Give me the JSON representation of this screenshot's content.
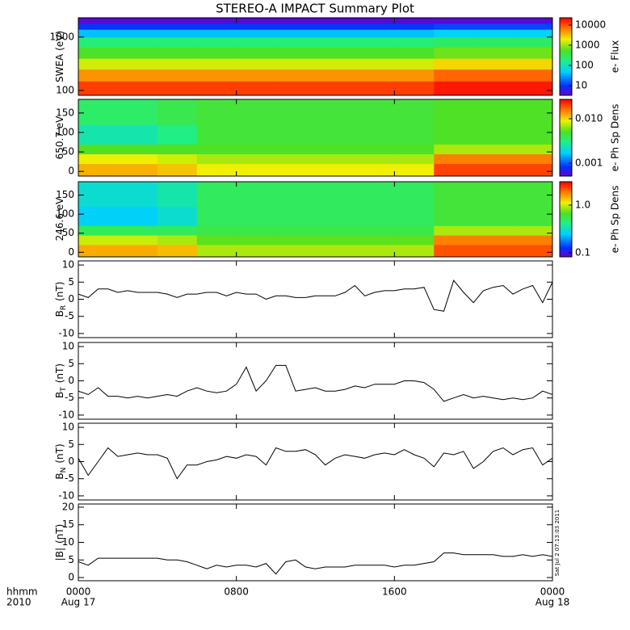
{
  "title": "STEREO-A IMPACT Summary Plot",
  "timestamp": "Sat Jul  2 07:13:03 2011",
  "chart_data": [
    {
      "type": "heatmap",
      "ylabel": "SWEA (eV)",
      "ylog": true,
      "xlim": [
        0,
        24
      ],
      "ylim": [
        81,
        2300
      ],
      "yticks": [
        100,
        1000
      ],
      "x_bins": [
        0,
        2,
        4,
        6,
        8,
        10,
        12,
        14,
        16,
        18,
        20,
        22,
        24
      ],
      "y_bins": [
        81,
        150,
        250,
        400,
        650,
        1000,
        1400,
        1800,
        2300
      ],
      "z": [
        [
          12000,
          5000,
          1500,
          500,
          200,
          40,
          10,
          4
        ],
        [
          12000,
          5000,
          1500,
          500,
          200,
          40,
          10,
          4
        ],
        [
          12000,
          5000,
          1500,
          500,
          200,
          40,
          10,
          4
        ],
        [
          12000,
          5000,
          1500,
          500,
          200,
          40,
          10,
          4
        ],
        [
          12000,
          5000,
          1500,
          500,
          200,
          40,
          10,
          4
        ],
        [
          12000,
          5000,
          1500,
          500,
          200,
          40,
          10,
          4
        ],
        [
          12000,
          5000,
          1500,
          500,
          200,
          40,
          10,
          4
        ],
        [
          12000,
          5000,
          1500,
          500,
          200,
          40,
          10,
          4
        ],
        [
          12000,
          5000,
          1500,
          500,
          200,
          40,
          10,
          4
        ],
        [
          18000,
          8000,
          2500,
          700,
          250,
          50,
          12,
          4
        ],
        [
          18000,
          8000,
          2500,
          700,
          250,
          50,
          12,
          4
        ],
        [
          18000,
          8000,
          2500,
          700,
          250,
          50,
          12,
          4
        ]
      ],
      "colorbar": {
        "label": "e- Flux",
        "log": true,
        "lim": [
          3.3,
          23000
        ],
        "ticks": [
          10,
          100,
          1000,
          10000
        ]
      }
    },
    {
      "type": "heatmap",
      "ylabel": "650.7 eV",
      "ylog": false,
      "xlim": [
        0,
        24
      ],
      "ylim": [
        -12,
        185
      ],
      "yticks": [
        0,
        50,
        100,
        150
      ],
      "x_bins": [
        0,
        2,
        4,
        6,
        8,
        10,
        12,
        14,
        16,
        18,
        20,
        22,
        24
      ],
      "y_bins": [
        -12,
        20,
        45,
        70,
        120,
        185
      ],
      "z": [
        [
          0.012,
          0.009,
          0.005,
          0.0025,
          0.0035
        ],
        [
          0.012,
          0.009,
          0.005,
          0.0025,
          0.0035
        ],
        [
          0.011,
          0.008,
          0.005,
          0.003,
          0.004
        ],
        [
          0.009,
          0.007,
          0.005,
          0.0045,
          0.0045
        ],
        [
          0.009,
          0.007,
          0.005,
          0.0045,
          0.0045
        ],
        [
          0.009,
          0.007,
          0.005,
          0.0045,
          0.0045
        ],
        [
          0.009,
          0.007,
          0.005,
          0.0045,
          0.0045
        ],
        [
          0.009,
          0.007,
          0.005,
          0.0045,
          0.0045
        ],
        [
          0.009,
          0.007,
          0.005,
          0.0045,
          0.0045
        ],
        [
          0.02,
          0.015,
          0.007,
          0.005,
          0.005
        ],
        [
          0.02,
          0.015,
          0.007,
          0.005,
          0.005
        ],
        [
          0.02,
          0.015,
          0.007,
          0.005,
          0.005
        ]
      ],
      "colorbar": {
        "label": "e- Ph Sp Dens",
        "log": true,
        "lim": [
          0.00051,
          0.0273
        ],
        "ticks": [
          {
            "value": 0.001,
            "label": "0.001"
          },
          {
            "value": 0.01,
            "label": "0.010"
          }
        ]
      }
    },
    {
      "type": "heatmap",
      "ylabel": "246.6 eV",
      "ylog": false,
      "xlim": [
        0,
        24
      ],
      "ylim": [
        -12,
        185
      ],
      "yticks": [
        0,
        50,
        100,
        150
      ],
      "x_bins": [
        0,
        2,
        4,
        6,
        8,
        10,
        12,
        14,
        16,
        18,
        20,
        22,
        24
      ],
      "y_bins": [
        -12,
        20,
        45,
        70,
        120,
        185
      ],
      "z": [
        [
          1.5,
          1.0,
          0.5,
          0.25,
          0.3
        ],
        [
          1.5,
          1.0,
          0.5,
          0.25,
          0.3
        ],
        [
          1.4,
          0.9,
          0.5,
          0.3,
          0.35
        ],
        [
          0.9,
          0.7,
          0.55,
          0.5,
          0.5
        ],
        [
          0.9,
          0.7,
          0.55,
          0.5,
          0.5
        ],
        [
          0.9,
          0.7,
          0.55,
          0.5,
          0.5
        ],
        [
          0.9,
          0.7,
          0.55,
          0.5,
          0.5
        ],
        [
          0.9,
          0.7,
          0.55,
          0.5,
          0.5
        ],
        [
          0.9,
          0.7,
          0.55,
          0.5,
          0.5
        ],
        [
          2.2,
          1.8,
          0.9,
          0.6,
          0.6
        ],
        [
          2.2,
          1.8,
          0.9,
          0.6,
          0.6
        ],
        [
          2.2,
          1.8,
          0.9,
          0.6,
          0.6
        ]
      ],
      "colorbar": {
        "label": "e- Ph Sp Dens",
        "log": true,
        "lim": [
          0.082,
          3.1
        ],
        "ticks": [
          0.1,
          {
            "value": 1,
            "label": "1.0"
          }
        ]
      }
    },
    {
      "type": "line",
      "ylabel": "B",
      "ylabel_sub": "R",
      "ylabel_unit": "(nT)",
      "color": "#000000",
      "xlim": [
        0,
        24
      ],
      "ylim": [
        -11.2,
        11.2
      ],
      "yticks": [
        -10,
        -5,
        0,
        5,
        10
      ],
      "x": [
        0,
        0.5,
        1,
        1.5,
        2,
        2.5,
        3,
        3.5,
        4,
        4.5,
        5,
        5.5,
        6,
        6.5,
        7,
        7.5,
        8,
        8.5,
        9,
        9.5,
        10,
        10.5,
        11,
        11.5,
        12,
        12.5,
        13,
        13.5,
        14,
        14.5,
        15,
        15.5,
        16,
        16.5,
        17,
        17.5,
        18,
        18.5,
        19,
        19.5,
        20,
        20.5,
        21,
        21.5,
        22,
        22.5,
        23,
        23.5,
        24
      ],
      "values": [
        1.5,
        0.5,
        3,
        3,
        2,
        2.5,
        2,
        2,
        2,
        1.5,
        0.5,
        1.5,
        1.5,
        2,
        2,
        1,
        2,
        1.5,
        1.5,
        0,
        1,
        1,
        0.5,
        0.5,
        1,
        1,
        1,
        2,
        4,
        1,
        2,
        2.5,
        2.5,
        3,
        3,
        3.5,
        -3,
        -3.5,
        5.5,
        2,
        -1,
        2.5,
        3.5,
        4,
        1.5,
        3,
        4,
        -1,
        5
      ]
    },
    {
      "type": "line",
      "ylabel": "B",
      "ylabel_sub": "T",
      "ylabel_unit": "(nT)",
      "color": "#000000",
      "xlim": [
        0,
        24
      ],
      "ylim": [
        -11.2,
        11.2
      ],
      "yticks": [
        -10,
        -5,
        0,
        5,
        10
      ],
      "x": [
        0,
        0.5,
        1,
        1.5,
        2,
        2.5,
        3,
        3.5,
        4,
        4.5,
        5,
        5.5,
        6,
        6.5,
        7,
        7.5,
        8,
        8.5,
        9,
        9.5,
        10,
        10.5,
        11,
        11.5,
        12,
        12.5,
        13,
        13.5,
        14,
        14.5,
        15,
        15.5,
        16,
        16.5,
        17,
        17.5,
        18,
        18.5,
        19,
        19.5,
        20,
        20.5,
        21,
        21.5,
        22,
        22.5,
        23,
        23.5,
        24
      ],
      "values": [
        -3,
        -4,
        -2,
        -4.5,
        -4.5,
        -5,
        -4.5,
        -5,
        -4.5,
        -4,
        -4.5,
        -3,
        -2,
        -3,
        -3.5,
        -3,
        -1,
        4,
        -3,
        0,
        4.5,
        4.5,
        -3,
        -2.5,
        -2,
        -3,
        -3,
        -2.5,
        -1.5,
        -2,
        -1,
        -1,
        -1,
        0,
        0,
        -0.5,
        -2.5,
        -6,
        -5,
        -4,
        -5,
        -4.5,
        -5,
        -5.5,
        -5,
        -5.5,
        -5,
        -3,
        -4
      ]
    },
    {
      "type": "line",
      "ylabel": "B",
      "ylabel_sub": "N",
      "ylabel_unit": "(nT)",
      "color": "#000000",
      "xlim": [
        0,
        24
      ],
      "ylim": [
        -11.2,
        11.2
      ],
      "yticks": [
        -10,
        -5,
        0,
        5,
        10
      ],
      "x": [
        0,
        0.5,
        1,
        1.5,
        2,
        2.5,
        3,
        3.5,
        4,
        4.5,
        5,
        5.5,
        6,
        6.5,
        7,
        7.5,
        8,
        8.5,
        9,
        9.5,
        10,
        10.5,
        11,
        11.5,
        12,
        12.5,
        13,
        13.5,
        14,
        14.5,
        15,
        15.5,
        16,
        16.5,
        17,
        17.5,
        18,
        18.5,
        19,
        19.5,
        20,
        20.5,
        21,
        21.5,
        22,
        22.5,
        23,
        23.5,
        24
      ],
      "values": [
        1,
        -4,
        0,
        4,
        1.5,
        2,
        2.5,
        2,
        2,
        1,
        -5,
        -1,
        -1,
        0,
        0.5,
        1.5,
        1,
        2,
        1.5,
        -1,
        4,
        3,
        3,
        3.5,
        2,
        -1,
        1,
        2,
        1.5,
        1,
        2,
        2.5,
        2,
        3.5,
        2,
        1,
        -1.5,
        2.5,
        2,
        3,
        -2,
        0,
        3,
        4,
        2,
        3.5,
        4,
        -1,
        1
      ]
    },
    {
      "type": "line",
      "ylabel": "|B|",
      "ylabel_unit": "(nT)",
      "color": "#000000",
      "xlim": [
        0,
        24
      ],
      "ylim": [
        -0.9,
        20.9
      ],
      "yticks": [
        0,
        5,
        10,
        15,
        20
      ],
      "x": [
        0,
        0.5,
        1,
        1.5,
        2,
        2.5,
        3,
        3.5,
        4,
        4.5,
        5,
        5.5,
        6,
        6.5,
        7,
        7.5,
        8,
        8.5,
        9,
        9.5,
        10,
        10.5,
        11,
        11.5,
        12,
        12.5,
        13,
        13.5,
        14,
        14.5,
        15,
        15.5,
        16,
        16.5,
        17,
        17.5,
        18,
        18.5,
        19,
        19.5,
        20,
        20.5,
        21,
        21.5,
        22,
        22.5,
        23,
        23.5,
        24
      ],
      "values": [
        4.5,
        3.5,
        5.5,
        5.5,
        5.5,
        5.5,
        5.5,
        5.5,
        5.5,
        5,
        5,
        4.5,
        3.5,
        2.5,
        3.5,
        3,
        3.5,
        3.5,
        3,
        4,
        1,
        4.5,
        5,
        3,
        2.5,
        3,
        3,
        3,
        3.5,
        3.5,
        3.5,
        3.5,
        3,
        3.5,
        3.5,
        4,
        4.5,
        7,
        7,
        6.5,
        6.5,
        6.5,
        6.5,
        6,
        6,
        6.5,
        6,
        6.5,
        6
      ],
      "xticks": [
        {
          "value": 0,
          "label": "0000"
        },
        {
          "value": 8,
          "label": "0800"
        },
        {
          "value": 16,
          "label": "1600"
        },
        {
          "value": 24,
          "label": "0000"
        }
      ],
      "xtick_dates": [
        {
          "value": 0,
          "label": "Aug 17"
        },
        {
          "value": 24,
          "label": "Aug 18"
        }
      ],
      "xlabel": "hhmm",
      "year": "2010"
    }
  ]
}
